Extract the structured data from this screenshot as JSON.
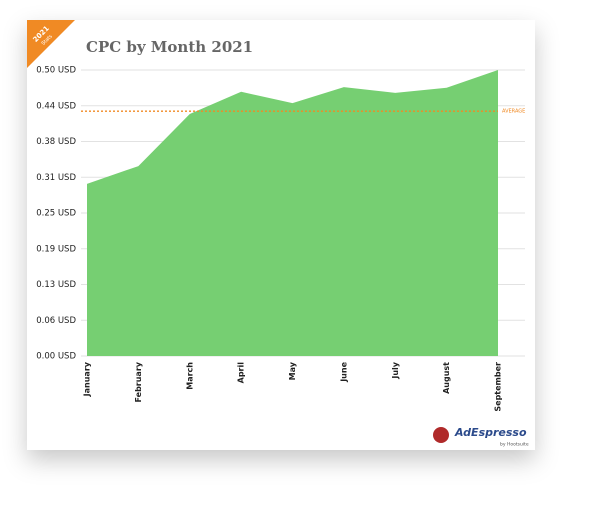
{
  "chart_data": {
    "type": "area",
    "title": "CPC by Month 2021",
    "badge": [
      "2021",
      "Stats"
    ],
    "logo": {
      "name": "AdEspresso",
      "by": "by Hootsuite"
    },
    "categories": [
      "January",
      "February",
      "March",
      "April",
      "May",
      "June",
      "July",
      "August",
      "September"
    ],
    "series": [
      {
        "name": "CPC",
        "color": "#76cf72",
        "values": [
          0.301,
          0.332,
          0.423,
          0.462,
          0.442,
          0.47,
          0.46,
          0.469,
          0.5
        ]
      }
    ],
    "reference_line": {
      "label": "AVERAGE",
      "value": 0.428,
      "color": "#f08a24"
    },
    "ylim": [
      0,
      0.5
    ],
    "yticks": [
      {
        "value": 0,
        "label": "0.00 USD"
      },
      {
        "value": 0.0625,
        "label": "0.06 USD"
      },
      {
        "value": 0.125,
        "label": "0.13 USD"
      },
      {
        "value": 0.1875,
        "label": "0.19 USD"
      },
      {
        "value": 0.25,
        "label": "0.25 USD"
      },
      {
        "value": 0.3125,
        "label": "0.31 USD"
      },
      {
        "value": 0.375,
        "label": "0.38 USD"
      },
      {
        "value": 0.4375,
        "label": "0.44 USD"
      },
      {
        "value": 0.5,
        "label": "0.50 USD"
      }
    ],
    "grid": true
  }
}
